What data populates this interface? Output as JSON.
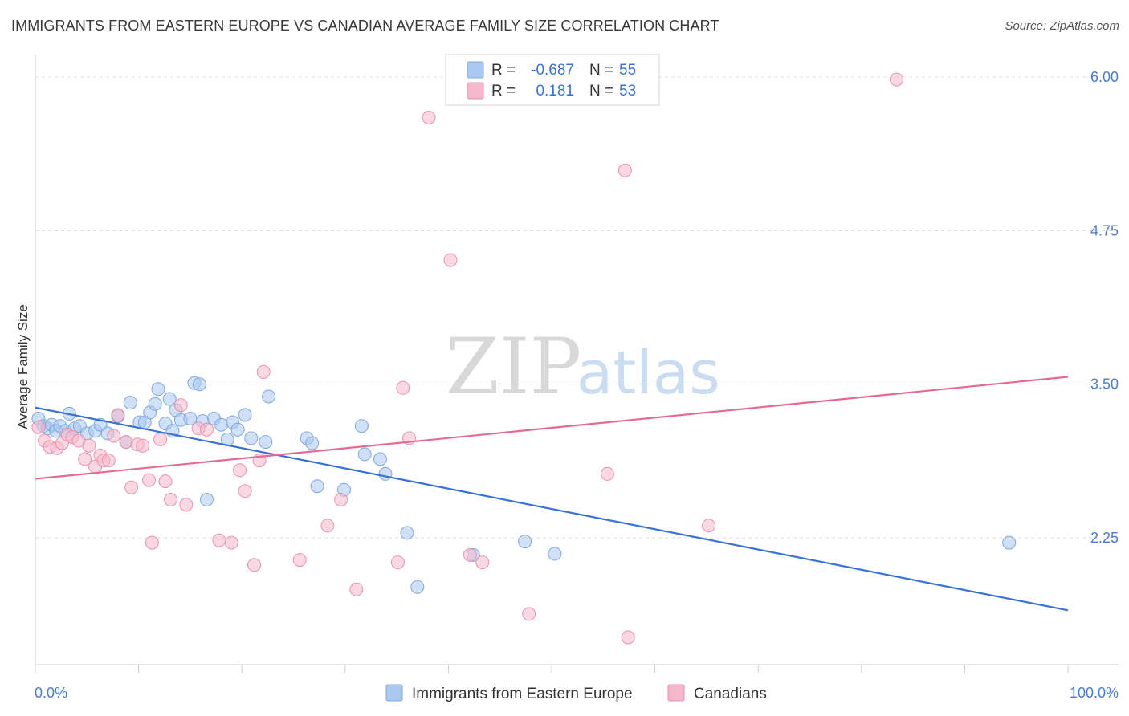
{
  "title": "IMMIGRANTS FROM EASTERN EUROPE VS CANADIAN AVERAGE FAMILY SIZE CORRELATION CHART",
  "source": "Source: ZipAtlas.com",
  "watermark": {
    "zip": "ZIP",
    "atlas": "atlas"
  },
  "colors": {
    "blue": "#4a7cc9",
    "blue_fill": "#aac8f0",
    "blue_line": "#3a72d4",
    "pink_fill": "#f5b8ca",
    "pink_line": "#e46a94",
    "grid": "#dddddd"
  },
  "legend": {
    "rows": [
      {
        "r_label": "R =",
        "r_value": "-0.687",
        "n_label": "N =",
        "n_value": "55",
        "series": "blue"
      },
      {
        "r_label": "R =",
        "r_value": "0.181",
        "n_label": "N =",
        "n_value": "53",
        "series": "pink"
      }
    ]
  },
  "bottom_legend": [
    {
      "label": "Immigrants from Eastern Europe",
      "series": "blue"
    },
    {
      "label": "Canadians",
      "series": "pink"
    }
  ],
  "chart_data": {
    "type": "scatter",
    "ylabel": "Average Family Size",
    "xlabel": "",
    "xlim": [
      0,
      100
    ],
    "ylim": [
      1.25,
      6.1
    ],
    "x_tick_labels": {
      "left": "0.0%",
      "right": "100.0%"
    },
    "y_ticks": [
      {
        "value": 6.0,
        "label": "6.00"
      },
      {
        "value": 4.75,
        "label": "4.75"
      },
      {
        "value": 3.5,
        "label": "3.50"
      },
      {
        "value": 2.25,
        "label": "2.25"
      }
    ],
    "grid": true,
    "series": [
      {
        "name": "Immigrants from Eastern Europe",
        "color": "#aac8f0",
        "trend": {
          "x": [
            0,
            100
          ],
          "y": [
            3.31,
            1.66
          ]
        },
        "points": [
          [
            0.3,
            3.22
          ],
          [
            0.8,
            3.16
          ],
          [
            1.2,
            3.14
          ],
          [
            1.6,
            3.17
          ],
          [
            2.0,
            3.12
          ],
          [
            2.4,
            3.16
          ],
          [
            2.9,
            3.12
          ],
          [
            3.3,
            3.26
          ],
          [
            3.8,
            3.14
          ],
          [
            4.3,
            3.16
          ],
          [
            5.0,
            3.1
          ],
          [
            5.8,
            3.12
          ],
          [
            6.3,
            3.17
          ],
          [
            7.0,
            3.1
          ],
          [
            8.0,
            3.24
          ],
          [
            8.8,
            3.03
          ],
          [
            9.2,
            3.35
          ],
          [
            10.1,
            3.19
          ],
          [
            10.6,
            3.19
          ],
          [
            11.1,
            3.27
          ],
          [
            11.6,
            3.34
          ],
          [
            11.9,
            3.46
          ],
          [
            12.6,
            3.18
          ],
          [
            13.0,
            3.38
          ],
          [
            13.3,
            3.12
          ],
          [
            13.6,
            3.29
          ],
          [
            14.1,
            3.21
          ],
          [
            15.0,
            3.22
          ],
          [
            15.4,
            3.51
          ],
          [
            15.9,
            3.5
          ],
          [
            16.2,
            3.2
          ],
          [
            16.6,
            2.56
          ],
          [
            17.3,
            3.22
          ],
          [
            18.0,
            3.17
          ],
          [
            18.6,
            3.05
          ],
          [
            19.1,
            3.19
          ],
          [
            19.6,
            3.13
          ],
          [
            20.3,
            3.25
          ],
          [
            20.9,
            3.06
          ],
          [
            22.3,
            3.03
          ],
          [
            22.6,
            3.4
          ],
          [
            26.3,
            3.06
          ],
          [
            26.8,
            3.02
          ],
          [
            27.3,
            2.67
          ],
          [
            29.9,
            2.64
          ],
          [
            31.6,
            3.16
          ],
          [
            31.9,
            2.93
          ],
          [
            33.4,
            2.89
          ],
          [
            33.9,
            2.77
          ],
          [
            36.0,
            2.29
          ],
          [
            37.0,
            1.85
          ],
          [
            42.4,
            2.11
          ],
          [
            47.4,
            2.22
          ],
          [
            50.3,
            2.12
          ],
          [
            94.3,
            2.21
          ]
        ]
      },
      {
        "name": "Canadians",
        "color": "#f5b8ca",
        "trend": {
          "x": [
            0,
            100
          ],
          "y": [
            2.73,
            3.56
          ]
        },
        "points": [
          [
            0.3,
            3.15
          ],
          [
            0.9,
            3.04
          ],
          [
            1.4,
            2.99
          ],
          [
            2.1,
            2.98
          ],
          [
            2.6,
            3.02
          ],
          [
            3.1,
            3.09
          ],
          [
            3.6,
            3.07
          ],
          [
            4.2,
            3.04
          ],
          [
            4.8,
            2.89
          ],
          [
            5.2,
            3.0
          ],
          [
            5.8,
            2.83
          ],
          [
            6.3,
            2.92
          ],
          [
            6.6,
            2.88
          ],
          [
            7.1,
            2.88
          ],
          [
            7.6,
            3.08
          ],
          [
            8.0,
            3.25
          ],
          [
            8.8,
            3.03
          ],
          [
            9.3,
            2.66
          ],
          [
            9.9,
            3.01
          ],
          [
            10.4,
            3.0
          ],
          [
            11.0,
            2.72
          ],
          [
            11.3,
            2.21
          ],
          [
            12.1,
            3.05
          ],
          [
            12.6,
            2.71
          ],
          [
            13.1,
            2.56
          ],
          [
            14.1,
            3.33
          ],
          [
            14.6,
            2.52
          ],
          [
            15.8,
            3.14
          ],
          [
            16.6,
            3.13
          ],
          [
            17.8,
            2.23
          ],
          [
            19.0,
            2.21
          ],
          [
            19.8,
            2.8
          ],
          [
            20.3,
            2.63
          ],
          [
            21.2,
            2.03
          ],
          [
            21.7,
            2.88
          ],
          [
            22.1,
            3.6
          ],
          [
            25.6,
            2.07
          ],
          [
            28.3,
            2.35
          ],
          [
            29.6,
            2.56
          ],
          [
            31.1,
            1.83
          ],
          [
            35.1,
            2.05
          ],
          [
            35.6,
            3.47
          ],
          [
            36.2,
            3.06
          ],
          [
            38.1,
            5.67
          ],
          [
            40.2,
            4.51
          ],
          [
            42.1,
            2.11
          ],
          [
            43.3,
            2.05
          ],
          [
            47.8,
            1.63
          ],
          [
            55.4,
            2.77
          ],
          [
            57.1,
            5.24
          ],
          [
            57.4,
            1.44
          ],
          [
            65.2,
            2.35
          ],
          [
            83.4,
            5.98
          ]
        ]
      }
    ]
  }
}
